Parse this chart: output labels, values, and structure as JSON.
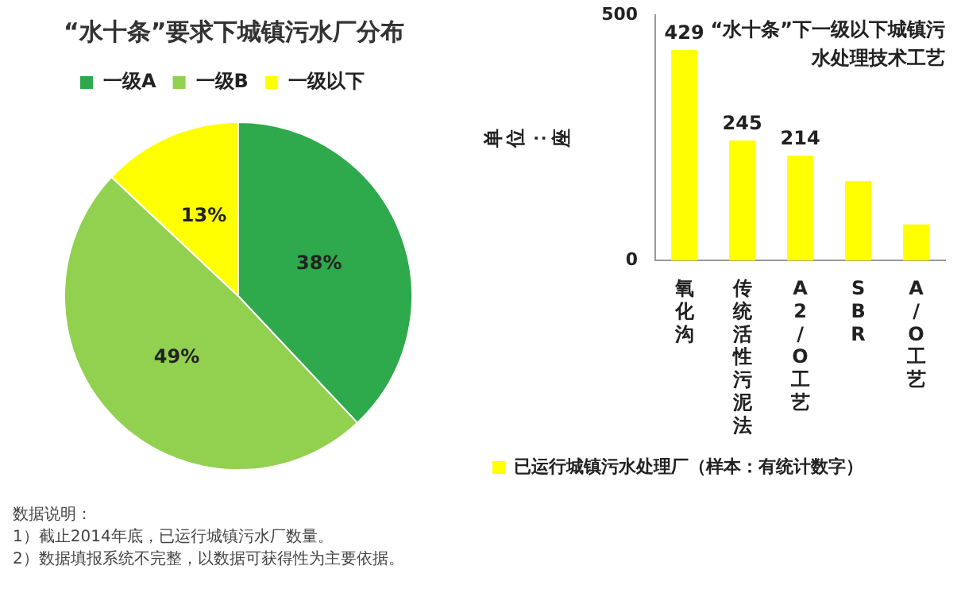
{
  "chart_data": [
    {
      "type": "pie",
      "title": "“水十条”要求下城镇污水厂分布",
      "categories": [
        "一级A",
        "一级B",
        "一级以下"
      ],
      "values": [
        38,
        49,
        13
      ],
      "colors": [
        "#2ea94b",
        "#92d050",
        "#ffff00"
      ],
      "value_labels": [
        "38%",
        "49%",
        "13%"
      ],
      "legend": "top",
      "annotations": [
        "数据说明：",
        "1）截止2014年底，已运行城镇污水厂数量。",
        "2）数据填报系统不完整，以数据可获得性为主要依据。"
      ]
    },
    {
      "type": "bar",
      "title": "“水十条”下一级以下城镇污水处理技术工艺",
      "ylabel": "单位：座",
      "categories": [
        "氧化沟",
        "传统活性污泥法",
        "A2/O工艺",
        "SBR",
        "A/O工艺"
      ],
      "series": [
        {
          "name": "已运行城镇污水处理厂（样本：有统计数字）",
          "color": "#ffff00",
          "values": [
            429,
            245,
            214,
            162,
            74
          ],
          "value_labels": [
            "429",
            "245",
            "214",
            null,
            null
          ]
        }
      ],
      "ylim": [
        0,
        500
      ],
      "yticks": [
        0,
        500
      ],
      "grid": false,
      "legend": "bottom"
    }
  ]
}
